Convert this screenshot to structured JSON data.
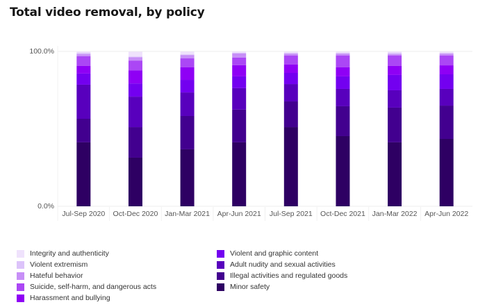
{
  "chart_data": {
    "type": "bar",
    "stacked": true,
    "title": "Total video removal, by policy",
    "xlabel": "",
    "ylabel": "",
    "ylim": [
      0,
      100
    ],
    "ytick_labels": [
      "0.0%",
      "100.0%"
    ],
    "grid": true,
    "legend_position": "bottom",
    "categories": [
      "Jul-Sep 2020",
      "Oct-Dec 2020",
      "Jan-Mar 2021",
      "Apr-Jun 2021",
      "Jul-Sep 2021",
      "Oct-Dec 2021",
      "Jan-Mar 2022",
      "Apr-Jun 2022"
    ],
    "series": [
      {
        "name": "Minor safety",
        "color": "#2e0063",
        "values": [
          41.3,
          31.4,
          36.8,
          41.3,
          51.1,
          45.3,
          41.3,
          43.5
        ]
      },
      {
        "name": "Illegal activities and regulated goods",
        "color": "#42008f",
        "values": [
          15.2,
          19.7,
          21.5,
          21.1,
          16.6,
          19.3,
          22.4,
          21.5
        ]
      },
      {
        "name": "Adult nudity and sexual activities",
        "color": "#5800bd",
        "values": [
          22.0,
          19.7,
          15.2,
          13.9,
          11.2,
          11.2,
          11.2,
          10.8
        ]
      },
      {
        "name": "Violent and graphic content",
        "color": "#7300f0",
        "values": [
          7.2,
          8.5,
          8.1,
          7.6,
          7.2,
          8.1,
          9.9,
          9.4
        ]
      },
      {
        "name": "Harassment and bullying",
        "color": "#8f00f5",
        "values": [
          4.9,
          8.5,
          8.1,
          7.2,
          5.4,
          5.8,
          5.8,
          5.8
        ]
      },
      {
        "name": "Suicide, self-harm, and dangerous acts",
        "color": "#ab47f5",
        "values": [
          6.3,
          6.3,
          5.8,
          4.9,
          5.8,
          7.6,
          6.7,
          6.3
        ]
      },
      {
        "name": "Hateful behavior",
        "color": "#c78ff7",
        "values": [
          1.3,
          2.2,
          2.2,
          2.7,
          1.3,
          1.3,
          0.9,
          1.3
        ]
      },
      {
        "name": "Violent extremism",
        "color": "#dcc3fa",
        "values": [
          0.9,
          0.4,
          0.4,
          0.4,
          0.4,
          0.4,
          0.9,
          0.4
        ]
      },
      {
        "name": "Integrity and authenticity",
        "color": "#efe2fc",
        "values": [
          0.9,
          3.1,
          1.8,
          0.9,
          0.9,
          0.9,
          0.9,
          0.9
        ]
      }
    ],
    "legend_left": [
      "Integrity and authenticity",
      "Violent extremism",
      "Hateful behavior",
      "Suicide, self-harm, and dangerous acts",
      "Harassment and bullying"
    ],
    "legend_right": [
      "Violent and graphic content",
      "Adult nudity and sexual activities",
      "Illegal activities and regulated goods",
      "Minor safety"
    ]
  }
}
